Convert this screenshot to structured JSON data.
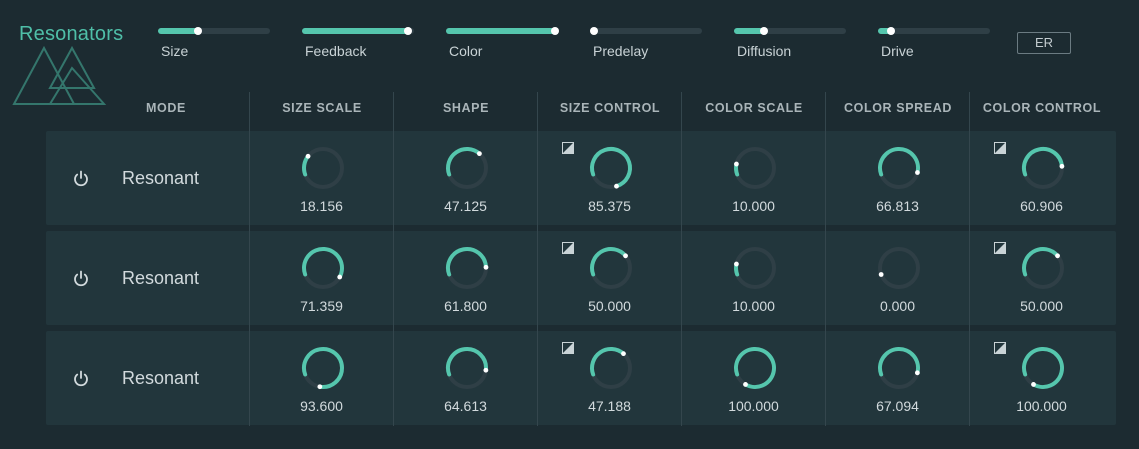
{
  "app": {
    "title": "Resonators"
  },
  "colors": {
    "accent": "#55c6ad",
    "knob_track": "#2f3f46",
    "background": "#1c2b31",
    "row_bg": "#22363c"
  },
  "sliders": [
    {
      "label": "Size",
      "value": 0.36
    },
    {
      "label": "Feedback",
      "value": 0.95
    },
    {
      "label": "Color",
      "value": 0.97
    },
    {
      "label": "Predelay",
      "value": 0.0
    },
    {
      "label": "Diffusion",
      "value": 0.27
    },
    {
      "label": "Drive",
      "value": 0.12
    }
  ],
  "er_button": {
    "label": "ER"
  },
  "columns": [
    "MODE",
    "SIZE SCALE",
    "SHAPE",
    "SIZE CONTROL",
    "COLOR SCALE",
    "COLOR SPREAD",
    "COLOR CONTROL"
  ],
  "rows": [
    {
      "mode": "Resonant",
      "power_icon": "power-icon",
      "values": [
        "18.156",
        "47.125",
        "85.375",
        "10.000",
        "66.813",
        "60.906"
      ],
      "levels": [
        0.18156,
        0.47125,
        0.85375,
        0.1,
        0.66813,
        0.60906
      ]
    },
    {
      "mode": "Resonant",
      "power_icon": "power-icon",
      "values": [
        "71.359",
        "61.800",
        "50.000",
        "10.000",
        "0.000",
        "50.000"
      ],
      "levels": [
        0.71359,
        0.618,
        0.5,
        0.1,
        0.0,
        0.5
      ]
    },
    {
      "mode": "Resonant",
      "power_icon": "power-icon",
      "values": [
        "93.600",
        "64.613",
        "47.188",
        "100.000",
        "67.094",
        "100.000"
      ],
      "levels": [
        0.936,
        0.64613,
        0.47188,
        1.0,
        0.67094,
        1.0
      ]
    }
  ],
  "modulation_columns": [
    2,
    5
  ]
}
